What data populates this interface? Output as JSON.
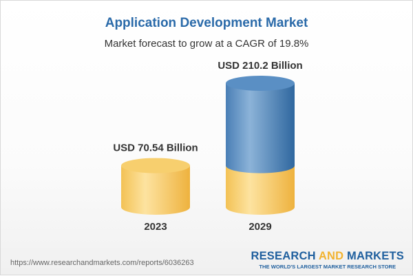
{
  "chart_data": {
    "type": "bar",
    "title": "Application Development Market",
    "subtitle": "Market forecast to grow at a CAGR of 19.8%",
    "categories": [
      "2023",
      "2029"
    ],
    "values": [
      70.54,
      210.2
    ],
    "data_labels": [
      "USD 70.54 Billion",
      "USD 210.2 Billion"
    ],
    "unit": "USD Billion",
    "style": "3d-cylinder",
    "colors": {
      "base": "#f5c451",
      "growth": "#4f87bd",
      "title": "#2a6aa9"
    }
  },
  "footer": {
    "url": "https://www.researchandmarkets.com/reports/6036263",
    "logo_line1_a": "RESEARCH ",
    "logo_line1_b": "AND",
    "logo_line1_c": " MARKETS",
    "logo_tagline": "THE WORLD'S LARGEST MARKET RESEARCH STORE"
  }
}
